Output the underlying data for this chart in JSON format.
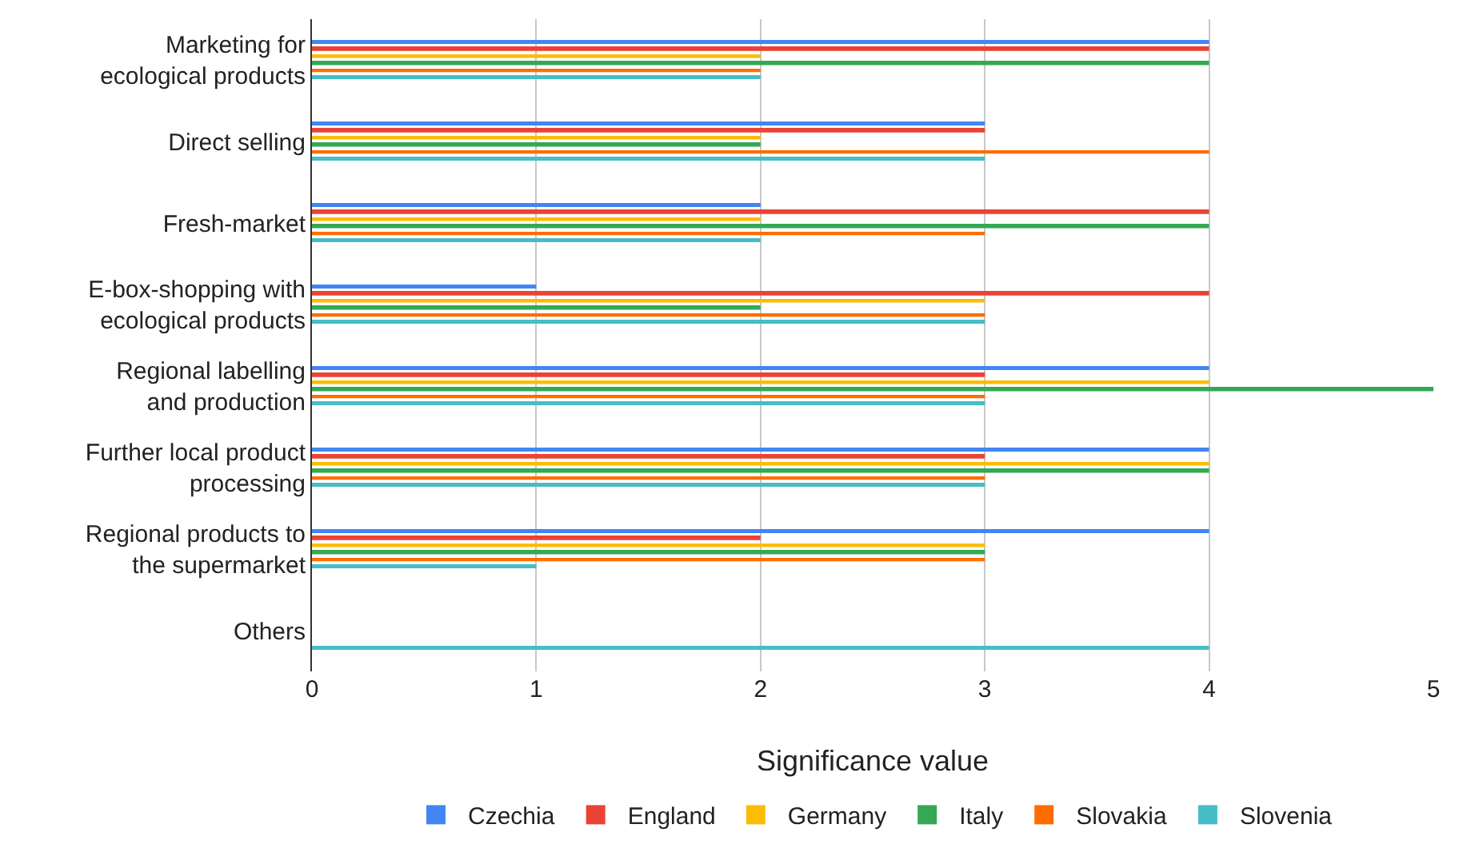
{
  "chart_data": {
    "type": "bar",
    "orientation": "horizontal",
    "xlabel": "Significance value",
    "categories": [
      "Marketing for ecological products",
      "Direct selling",
      "Fresh-market",
      "E-box-shopping with ecological products",
      "Regional labelling and production",
      "Further local product processing",
      "Regional products to the supermarket",
      "Others"
    ],
    "series": [
      {
        "name": "Czechia",
        "color": "#4285f4",
        "values": [
          4,
          3,
          2,
          1,
          4,
          4,
          4,
          0
        ]
      },
      {
        "name": "England",
        "color": "#ea4335",
        "values": [
          4,
          3,
          4,
          4,
          3,
          3,
          2,
          0
        ]
      },
      {
        "name": "Germany",
        "color": "#fbbc04",
        "values": [
          2,
          2,
          2,
          3,
          4,
          4,
          3,
          0
        ]
      },
      {
        "name": "Italy",
        "color": "#34a853",
        "values": [
          4,
          2,
          4,
          2,
          5,
          4,
          3,
          0
        ]
      },
      {
        "name": "Slovakia",
        "color": "#ff6d01",
        "values": [
          2,
          4,
          3,
          3,
          3,
          3,
          3,
          0
        ]
      },
      {
        "name": "Slovenia",
        "color": "#46bdc6",
        "values": [
          2,
          3,
          2,
          3,
          3,
          3,
          1,
          4
        ]
      }
    ],
    "xlim": [
      0,
      5
    ],
    "xticks": [
      0,
      1,
      2,
      3,
      4,
      5
    ],
    "grid": "x",
    "legend": "bottom"
  }
}
